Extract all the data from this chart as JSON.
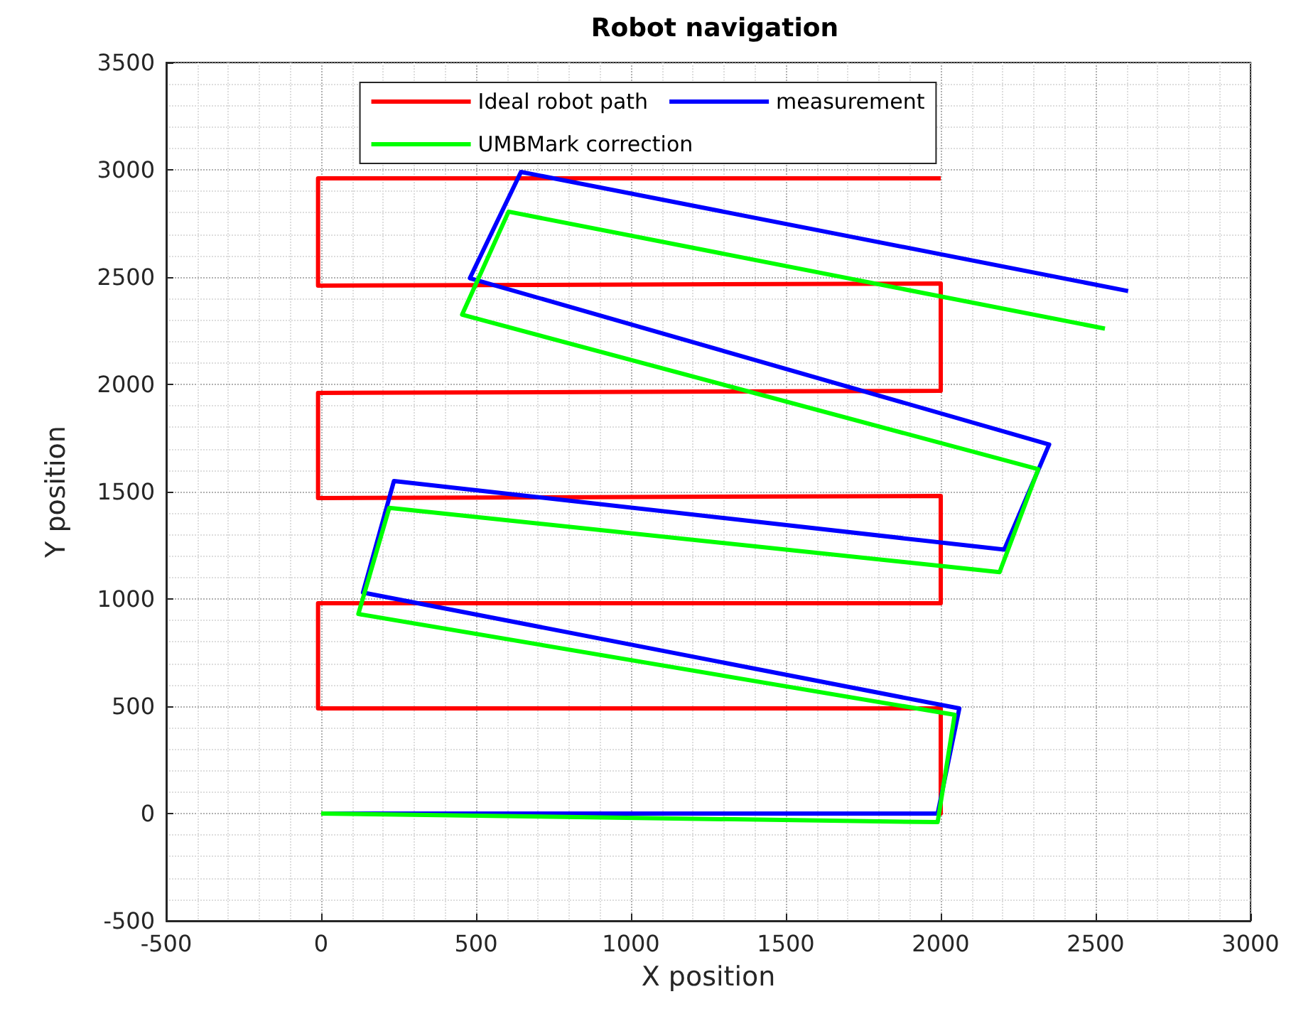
{
  "chart_data": {
    "type": "line",
    "title": "Robot navigation",
    "xlabel": "X position",
    "ylabel": "Y position",
    "xlim": [
      -500,
      3000
    ],
    "xticks": [
      -500,
      0,
      500,
      1000,
      1500,
      2000,
      2500,
      3000
    ],
    "ylim": [
      -500,
      3500
    ],
    "yticks": [
      -500,
      0,
      500,
      1000,
      1500,
      2000,
      2500,
      3000,
      3500
    ],
    "grid": true,
    "legend": "top",
    "marker": "none",
    "line_style": "solid",
    "series": [
      {
        "name": "Ideal robot path",
        "color": "#ff0000",
        "x": [
          0,
          2000,
          2000,
          -10,
          -10,
          2000,
          2000,
          -10,
          -10,
          2000,
          2000,
          -10,
          -10,
          2000
        ],
        "values": [
          0,
          0,
          490,
          490,
          980,
          980,
          1480,
          1470,
          1960,
          1970,
          2470,
          2460,
          2960,
          2960
        ]
      },
      {
        "name": "measurement",
        "color": "#0000ff",
        "x": [
          0,
          1990,
          2060,
          135,
          235,
          2205,
          2350,
          480,
          645,
          2605
        ],
        "values": [
          0,
          0,
          490,
          1030,
          1550,
          1230,
          1720,
          2495,
          2990,
          2435
        ]
      },
      {
        "name": "UMBMark correction",
        "color": "#00ff00",
        "x": [
          0,
          1990,
          2045,
          120,
          220,
          2190,
          2315,
          455,
          605,
          2530
        ],
        "values": [
          0,
          -40,
          460,
          930,
          1425,
          1125,
          1605,
          2325,
          2805,
          2260
        ]
      }
    ]
  }
}
